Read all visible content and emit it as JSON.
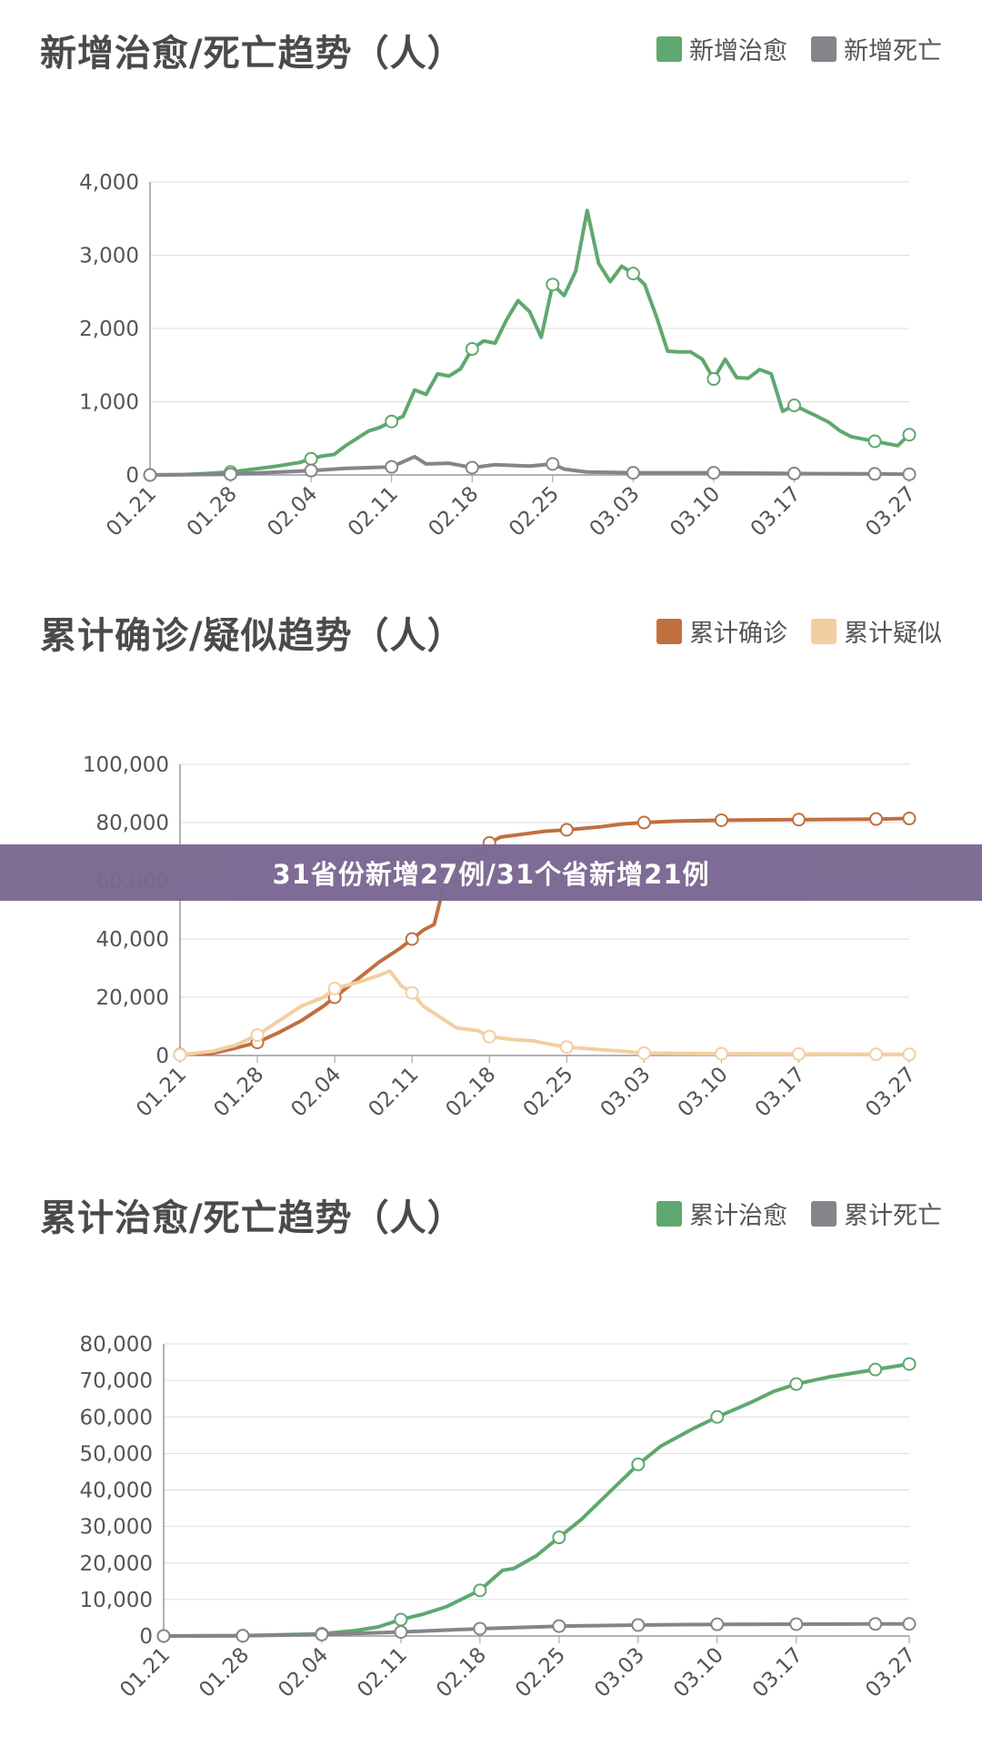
{
  "banner": {
    "text": "31省份新增27例/31个省新增21例"
  },
  "chart_data": [
    {
      "type": "line",
      "title": "新增治愈/死亡趋势（人）",
      "xlabel": "",
      "ylabel": "",
      "x_ticks": [
        "01.21",
        "01.28",
        "02.04",
        "02.11",
        "02.18",
        "02.25",
        "03.03",
        "03.10",
        "03.17",
        "03.27"
      ],
      "y_ticks": [
        "0",
        "1,000",
        "2,000",
        "3,000",
        "4,000"
      ],
      "ylim": [
        0,
        4000
      ],
      "legend_position": "top-right",
      "series": [
        {
          "name": "新增治愈",
          "color": "#5fa86f",
          "points": [
            [
              0,
              0
            ],
            [
              3,
              5
            ],
            [
              5,
              20
            ],
            [
              7,
              40
            ],
            [
              9,
              80
            ],
            [
              11,
              120
            ],
            [
              13,
              170
            ],
            [
              14,
              220
            ],
            [
              15,
              260
            ],
            [
              16,
              280
            ],
            [
              17,
              400
            ],
            [
              18,
              500
            ],
            [
              19,
              600
            ],
            [
              20,
              650
            ],
            [
              21,
              730
            ],
            [
              22,
              800
            ],
            [
              23,
              1160
            ],
            [
              24,
              1100
            ],
            [
              25,
              1380
            ],
            [
              26,
              1350
            ],
            [
              27,
              1450
            ],
            [
              28,
              1720
            ],
            [
              29,
              1830
            ],
            [
              30,
              1800
            ],
            [
              31,
              2120
            ],
            [
              32,
              2380
            ],
            [
              33,
              2230
            ],
            [
              34,
              1880
            ],
            [
              35,
              2600
            ],
            [
              36,
              2450
            ],
            [
              37,
              2780
            ],
            [
              38,
              3610
            ],
            [
              39,
              2890
            ],
            [
              40,
              2640
            ],
            [
              41,
              2850
            ],
            [
              42,
              2750
            ],
            [
              43,
              2600
            ],
            [
              44,
              2170
            ],
            [
              45,
              1690
            ],
            [
              46,
              1680
            ],
            [
              47,
              1680
            ],
            [
              48,
              1580
            ],
            [
              49,
              1310
            ],
            [
              50,
              1580
            ],
            [
              51,
              1330
            ],
            [
              52,
              1320
            ],
            [
              53,
              1440
            ],
            [
              54,
              1380
            ],
            [
              55,
              870
            ],
            [
              56,
              950
            ],
            [
              58,
              800
            ],
            [
              59,
              720
            ],
            [
              60,
              600
            ],
            [
              61,
              520
            ],
            [
              62,
              490
            ],
            [
              63,
              460
            ],
            [
              64,
              430
            ],
            [
              65,
              400
            ],
            [
              66,
              550
            ]
          ],
          "markers_at": [
            0,
            7,
            14,
            21,
            28,
            35,
            42,
            49,
            56,
            63,
            66
          ]
        },
        {
          "name": "新增死亡",
          "color": "#85848a",
          "points": [
            [
              0,
              0
            ],
            [
              7,
              10
            ],
            [
              14,
              60
            ],
            [
              17,
              90
            ],
            [
              21,
              110
            ],
            [
              23,
              250
            ],
            [
              24,
              150
            ],
            [
              26,
              160
            ],
            [
              28,
              100
            ],
            [
              30,
              140
            ],
            [
              33,
              120
            ],
            [
              35,
              150
            ],
            [
              36,
              80
            ],
            [
              38,
              40
            ],
            [
              42,
              30
            ],
            [
              49,
              30
            ],
            [
              56,
              20
            ],
            [
              63,
              15
            ],
            [
              66,
              10
            ]
          ],
          "markers_at": [
            0,
            7,
            14,
            21,
            28,
            35,
            42,
            49,
            56,
            63,
            66
          ]
        }
      ]
    },
    {
      "type": "line",
      "title": "累计确诊/疑似趋势（人）",
      "xlabel": "",
      "ylabel": "",
      "x_ticks": [
        "01.21",
        "01.28",
        "02.04",
        "02.11",
        "02.18",
        "02.25",
        "03.03",
        "03.10",
        "03.17",
        "03.27"
      ],
      "y_ticks": [
        "0",
        "20,000",
        "40,000",
        "60,000",
        "80,000",
        "100,000"
      ],
      "ylim": [
        0,
        100000
      ],
      "legend_position": "top-right",
      "series": [
        {
          "name": "累计确诊",
          "color": "#c0703f",
          "points": [
            [
              0,
              300
            ],
            [
              3,
              800
            ],
            [
              5,
              2500
            ],
            [
              7,
              4500
            ],
            [
              9,
              8000
            ],
            [
              11,
              12000
            ],
            [
              13,
              17000
            ],
            [
              14,
              20000
            ],
            [
              16,
              26000
            ],
            [
              18,
              32000
            ],
            [
              20,
              37000
            ],
            [
              21,
              40000
            ],
            [
              22,
              43000
            ],
            [
              23,
              45000
            ],
            [
              24,
              60000
            ],
            [
              25,
              66000
            ],
            [
              27,
              70000
            ],
            [
              28,
              73000
            ],
            [
              29,
              75000
            ],
            [
              31,
              76000
            ],
            [
              33,
              77000
            ],
            [
              35,
              77500
            ],
            [
              38,
              78500
            ],
            [
              40,
              79500
            ],
            [
              42,
              80000
            ],
            [
              45,
              80500
            ],
            [
              49,
              80800
            ],
            [
              56,
              81000
            ],
            [
              63,
              81200
            ],
            [
              66,
              81400
            ]
          ],
          "markers_at": [
            0,
            7,
            14,
            21,
            28,
            35,
            42,
            49,
            56,
            63,
            66
          ]
        },
        {
          "name": "累计疑似",
          "color": "#f2cfa2",
          "points": [
            [
              0,
              200
            ],
            [
              3,
              1500
            ],
            [
              5,
              3500
            ],
            [
              7,
              7000
            ],
            [
              9,
              12000
            ],
            [
              11,
              17000
            ],
            [
              13,
              20000
            ],
            [
              14,
              23000
            ],
            [
              16,
              25000
            ],
            [
              18,
              27500
            ],
            [
              19,
              29000
            ],
            [
              20,
              24000
            ],
            [
              21,
              21500
            ],
            [
              22,
              17000
            ],
            [
              24,
              12000
            ],
            [
              25,
              9500
            ],
            [
              27,
              8500
            ],
            [
              28,
              6500
            ],
            [
              30,
              5500
            ],
            [
              32,
              5000
            ],
            [
              34,
              3500
            ],
            [
              35,
              2900
            ],
            [
              38,
              2000
            ],
            [
              40,
              1500
            ],
            [
              42,
              800
            ],
            [
              45,
              700
            ],
            [
              49,
              600
            ],
            [
              56,
              500
            ],
            [
              63,
              400
            ],
            [
              66,
              400
            ]
          ],
          "markers_at": [
            0,
            7,
            14,
            21,
            28,
            35,
            42,
            49,
            56,
            63,
            66
          ]
        }
      ]
    },
    {
      "type": "line",
      "title": "累计治愈/死亡趋势（人）",
      "xlabel": "",
      "ylabel": "",
      "x_ticks": [
        "01.21",
        "01.28",
        "02.04",
        "02.11",
        "02.18",
        "02.25",
        "03.03",
        "03.10",
        "03.17",
        "03.27"
      ],
      "y_ticks": [
        "0",
        "10,000",
        "20,000",
        "30,000",
        "40,000",
        "50,000",
        "60,000",
        "70,000",
        "80,000"
      ],
      "ylim": [
        0,
        80000
      ],
      "legend_position": "top-right",
      "series": [
        {
          "name": "累计治愈",
          "color": "#5fa86f",
          "points": [
            [
              0,
              0
            ],
            [
              7,
              100
            ],
            [
              14,
              600
            ],
            [
              17,
              1500
            ],
            [
              19,
              2500
            ],
            [
              21,
              4500
            ],
            [
              23,
              6000
            ],
            [
              25,
              8000
            ],
            [
              28,
              12500
            ],
            [
              30,
              18000
            ],
            [
              31,
              18500
            ],
            [
              33,
              22000
            ],
            [
              35,
              27000
            ],
            [
              37,
              32000
            ],
            [
              39,
              38000
            ],
            [
              42,
              47000
            ],
            [
              44,
              52000
            ],
            [
              47,
              57000
            ],
            [
              49,
              60000
            ],
            [
              52,
              64000
            ],
            [
              54,
              67000
            ],
            [
              56,
              69000
            ],
            [
              59,
              71000
            ],
            [
              63,
              73000
            ],
            [
              66,
              74500
            ]
          ],
          "markers_at": [
            0,
            7,
            14,
            21,
            28,
            35,
            42,
            49,
            56,
            63,
            66
          ]
        },
        {
          "name": "累计死亡",
          "color": "#85848a",
          "points": [
            [
              0,
              0
            ],
            [
              7,
              50
            ],
            [
              14,
              400
            ],
            [
              21,
              1100
            ],
            [
              28,
              2000
            ],
            [
              35,
              2700
            ],
            [
              42,
              3000
            ],
            [
              49,
              3200
            ],
            [
              56,
              3250
            ],
            [
              63,
              3300
            ],
            [
              66,
              3300
            ]
          ],
          "markers_at": [
            0,
            7,
            14,
            21,
            28,
            35,
            42,
            49,
            56,
            63,
            66
          ]
        }
      ]
    }
  ]
}
